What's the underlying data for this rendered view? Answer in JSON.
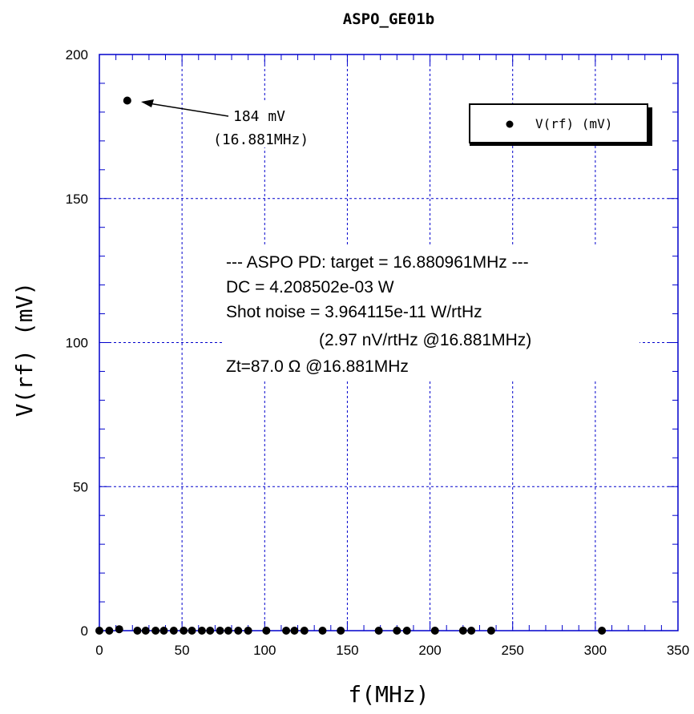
{
  "chart_data": {
    "type": "scatter",
    "title": "ASPO_GE01b",
    "xlabel": "f(MHz)",
    "ylabel": "V(rf) (mV)",
    "xlim": [
      0,
      350
    ],
    "ylim": [
      0,
      200
    ],
    "x_ticks": [
      "0",
      "50",
      "100",
      "150",
      "200",
      "250",
      "300",
      "350"
    ],
    "y_ticks": [
      "0",
      "50",
      "100",
      "150",
      "200"
    ],
    "x_tick_values": [
      0,
      50,
      100,
      150,
      200,
      250,
      300,
      350
    ],
    "y_tick_values": [
      0,
      50,
      100,
      150,
      200
    ],
    "grid": true,
    "legend_position": "top-right",
    "series": [
      {
        "name": "V(rf) (mV)",
        "color": "#000000",
        "x": [
          0,
          6,
          12,
          16.881,
          23,
          28,
          34,
          39,
          45,
          51,
          56,
          62,
          67,
          73,
          78,
          84,
          90,
          101,
          113,
          118,
          124,
          135,
          146,
          169,
          180,
          186,
          203,
          220,
          225,
          237,
          304
        ],
        "y": [
          0,
          0,
          0.5,
          184,
          0,
          0,
          0,
          0,
          0,
          0,
          0,
          0,
          0,
          0,
          0,
          0,
          0,
          0,
          0,
          0,
          0,
          0,
          0,
          0,
          0,
          0,
          0,
          0,
          0,
          0,
          0
        ]
      }
    ],
    "annotations": {
      "peak_value": "184 mV",
      "peak_freq": "(16.881MHz)",
      "info_lines": [
        "--- ASPO PD: target = 16.880961MHz ---",
        "DC = 4.208502e-03 W",
        "Shot noise = 3.964115e-11 W/rtHz",
        "(2.97 nV/rtHz   @16.881MHz)",
        "Zt=87.0 Ω   @16.881MHz"
      ]
    }
  },
  "colors": {
    "axis": "#0000cc",
    "grid": "#0000cc",
    "points": "#000000"
  }
}
